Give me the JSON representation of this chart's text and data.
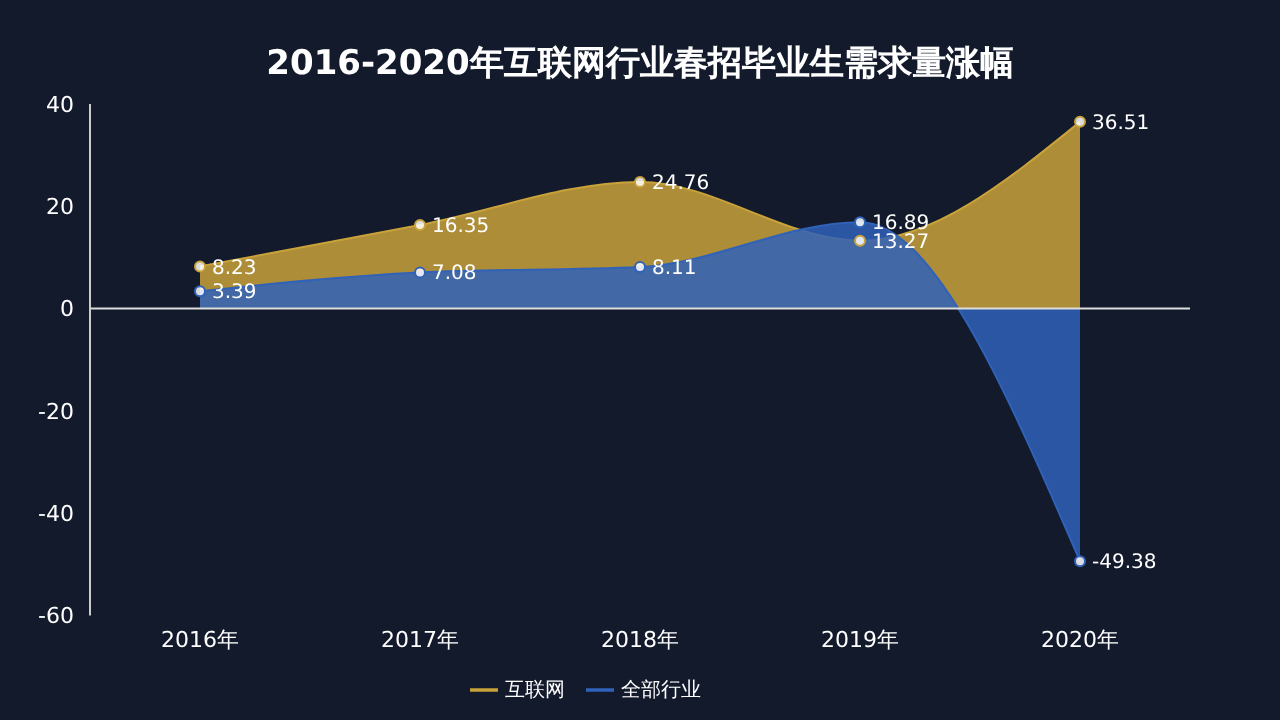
{
  "chart_data": {
    "type": "area",
    "title": "2016-2020年互联网行业春招毕业生需求量涨幅",
    "categories": [
      "2016年",
      "2017年",
      "2018年",
      "2019年",
      "2020年"
    ],
    "series": [
      {
        "name": "互联网",
        "color": "#c9a23a",
        "values": [
          8.23,
          16.35,
          24.76,
          13.27,
          36.51
        ]
      },
      {
        "name": "全部行业",
        "color": "#2f62b8",
        "values": [
          3.39,
          7.08,
          8.11,
          16.89,
          -49.38
        ]
      }
    ],
    "ylim": [
      -60,
      40
    ],
    "yticks": [
      -60,
      -40,
      -20,
      0,
      20,
      40
    ],
    "grid": false,
    "ref_lines": [
      {
        "axis": "y",
        "value": 0,
        "color": "#dddddd"
      }
    ],
    "legend": "bottom",
    "marker": "circle",
    "data_labels": true
  }
}
